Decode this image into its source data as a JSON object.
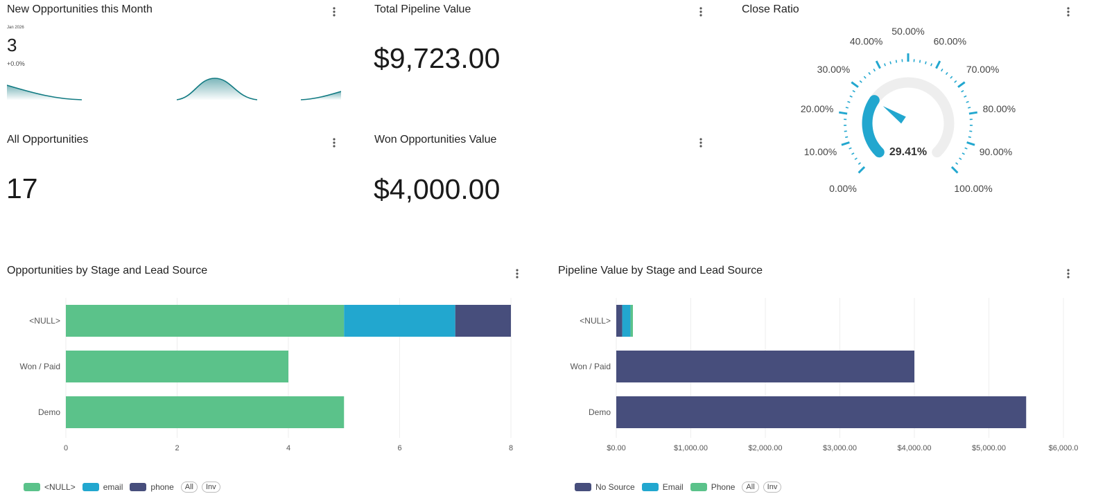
{
  "cards": {
    "new_opps": {
      "title": "New Opportunities this Month",
      "date_label": "Jan 2026",
      "value": "3",
      "change": "+0.0%"
    },
    "total_pipeline": {
      "title": "Total Pipeline Value",
      "value": "$9,723.00"
    },
    "close_ratio": {
      "title": "Close Ratio",
      "value_label": "29.41%",
      "value": 29.41,
      "scale_labels": [
        "0.00%",
        "10.00%",
        "20.00%",
        "30.00%",
        "40.00%",
        "50.00%",
        "60.00%",
        "70.00%",
        "80.00%",
        "90.00%",
        "100.00%"
      ]
    },
    "all_opps": {
      "title": "All Opportunities",
      "value": "17"
    },
    "won_value": {
      "title": "Won Opportunities Value",
      "value": "$4,000.00"
    },
    "opps_by_stage": {
      "title": "Opportunities by Stage and Lead Source"
    },
    "pipeline_by_stage": {
      "title": "Pipeline Value by Stage and Lead Source"
    }
  },
  "colors": {
    "green": "#5bc28a",
    "blue": "#22a7cf",
    "navy": "#474e7c",
    "teal": "#117a82",
    "gauge_track": "#eeeeee"
  },
  "chart_data": [
    {
      "type": "bar",
      "orientation": "horizontal",
      "stacked": true,
      "categories": [
        "<NULL>",
        "Won / Paid",
        "Demo"
      ],
      "series": [
        {
          "name": "<NULL>",
          "values": [
            5,
            4,
            5
          ]
        },
        {
          "name": "email",
          "values": [
            2,
            0,
            0
          ]
        },
        {
          "name": "phone",
          "values": [
            1,
            0,
            0
          ]
        }
      ],
      "xlim": [
        0,
        8
      ],
      "xticks": [
        "0",
        "2",
        "4",
        "6",
        "8"
      ],
      "grid": true,
      "legend_position": "bottom-left",
      "legend_buttons": [
        "All",
        "Inv"
      ]
    },
    {
      "type": "bar",
      "orientation": "horizontal",
      "stacked": true,
      "categories": [
        "<NULL>",
        "Won / Paid",
        "Demo"
      ],
      "series": [
        {
          "name": "No Source",
          "values": [
            80,
            4000,
            5500
          ]
        },
        {
          "name": "Email",
          "values": [
            110,
            0,
            0
          ]
        },
        {
          "name": "Phone",
          "values": [
            33,
            0,
            0
          ]
        }
      ],
      "xlim": [
        0,
        6000
      ],
      "xticks": [
        "$0.00",
        "$1,000.00",
        "$2,000.00",
        "$3,000.00",
        "$4,000.00",
        "$5,000.00",
        "$6,000.0"
      ],
      "grid": true,
      "legend_position": "bottom-left",
      "legend_buttons": [
        "All",
        "Inv"
      ]
    }
  ]
}
